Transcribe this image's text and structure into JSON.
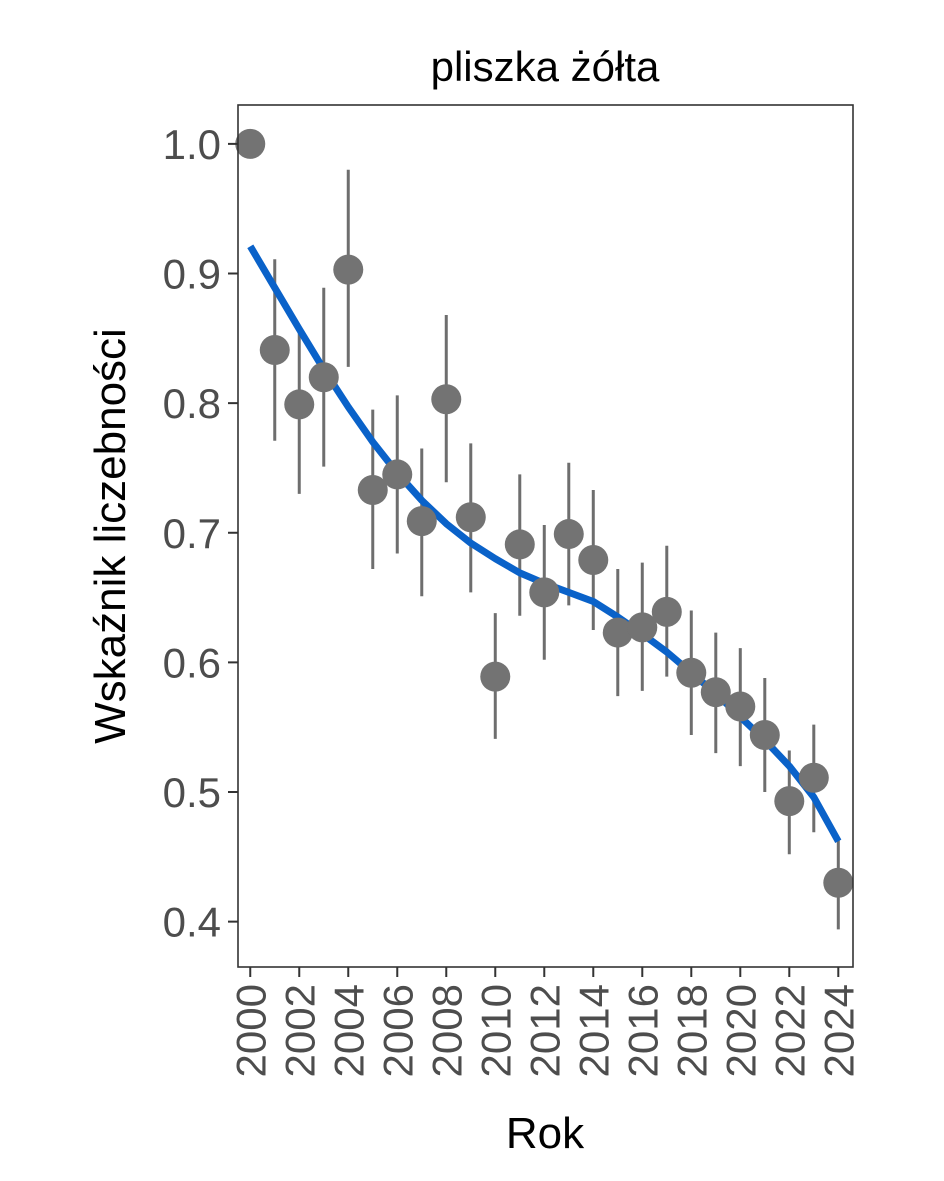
{
  "chart_data": {
    "type": "scatter",
    "title": "pliszka żółta",
    "xlabel": "Rok",
    "ylabel": "Wskaźnik liczebności",
    "xlim": [
      1999.5,
      2024.6
    ],
    "ylim": [
      0.365,
      1.03
    ],
    "x_ticks": [
      2000,
      2002,
      2004,
      2006,
      2008,
      2010,
      2012,
      2014,
      2016,
      2018,
      2020,
      2022,
      2024
    ],
    "x_tick_labels": [
      "2000",
      "2002",
      "2004",
      "2006",
      "2008",
      "2010",
      "2012",
      "2014",
      "2016",
      "2018",
      "2020",
      "2022",
      "2024"
    ],
    "y_ticks": [
      0.4,
      0.5,
      0.6,
      0.7,
      0.8,
      0.9,
      1.0
    ],
    "y_tick_labels": [
      "0.4",
      "0.5",
      "0.6",
      "0.7",
      "0.8",
      "0.9",
      "1.0"
    ],
    "grid": false,
    "colors": {
      "points": "#737373",
      "error_bars": "#6e6e6e",
      "trend": "#0a62c9",
      "axis_text": "#4d4d4d",
      "frame": "#333333"
    },
    "points": {
      "x": [
        2000,
        2001,
        2002,
        2003,
        2004,
        2005,
        2006,
        2007,
        2008,
        2009,
        2010,
        2011,
        2012,
        2013,
        2014,
        2015,
        2016,
        2017,
        2018,
        2019,
        2020,
        2021,
        2022,
        2023,
        2024
      ],
      "y": [
        1.0,
        0.841,
        0.799,
        0.82,
        0.903,
        0.733,
        0.745,
        0.709,
        0.803,
        0.712,
        0.589,
        0.691,
        0.654,
        0.699,
        0.679,
        0.623,
        0.627,
        0.639,
        0.592,
        0.577,
        0.566,
        0.544,
        0.493,
        0.511,
        0.43
      ],
      "lower": [
        null,
        0.771,
        0.73,
        0.751,
        0.828,
        0.672,
        0.684,
        0.651,
        0.739,
        0.654,
        0.541,
        0.636,
        0.602,
        0.644,
        0.625,
        0.574,
        0.578,
        0.589,
        0.544,
        0.53,
        0.52,
        0.5,
        0.452,
        0.469,
        0.394
      ],
      "upper": [
        null,
        0.911,
        0.857,
        0.889,
        0.98,
        0.795,
        0.806,
        0.765,
        0.868,
        0.769,
        0.638,
        0.745,
        0.706,
        0.754,
        0.733,
        0.672,
        0.677,
        0.69,
        0.64,
        0.623,
        0.611,
        0.588,
        0.532,
        0.552,
        0.465
      ]
    },
    "trend": {
      "x": [
        2000,
        2001,
        2002,
        2003,
        2004,
        2005,
        2006,
        2007,
        2008,
        2009,
        2010,
        2011,
        2012,
        2013,
        2014,
        2015,
        2016,
        2017,
        2018,
        2019,
        2020,
        2021,
        2022,
        2023,
        2024
      ],
      "y": [
        0.921,
        0.889,
        0.857,
        0.826,
        0.797,
        0.77,
        0.746,
        0.725,
        0.707,
        0.692,
        0.68,
        0.669,
        0.661,
        0.654,
        0.647,
        0.635,
        0.622,
        0.608,
        0.592,
        0.576,
        0.558,
        0.54,
        0.52,
        0.496,
        0.462
      ]
    }
  }
}
